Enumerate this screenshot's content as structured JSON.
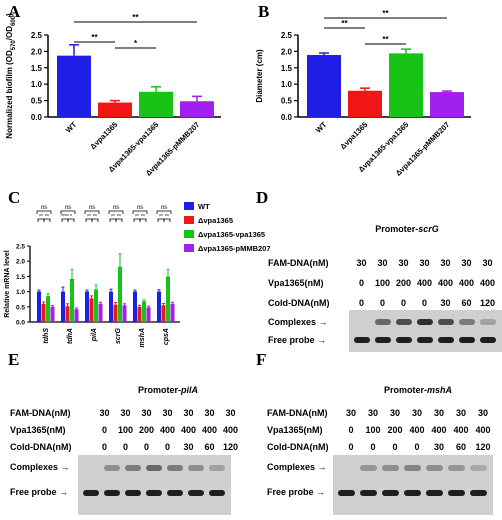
{
  "panels": {
    "A": {
      "letter": "A",
      "chart_data": {
        "type": "bar",
        "ylabel": "Normalized biofilm (OD570/OD600)",
        "ylabel_parts": [
          "Normalized biofilm (OD",
          "570",
          "/OD",
          "600",
          ")"
        ],
        "ylim": [
          0,
          2.5
        ],
        "yticks": [
          "0.0",
          "0.5",
          "1.0",
          "1.5",
          "2.0",
          "2.5"
        ],
        "categories": [
          "WT",
          "Δvpa1365",
          "Δvpa1365-vpa1365",
          "Δvpa1365-pMMB207"
        ],
        "values": [
          1.87,
          0.44,
          0.77,
          0.48
        ],
        "errors": [
          0.33,
          0.06,
          0.15,
          0.15
        ],
        "colors": [
          "#1f1fe6",
          "#f01616",
          "#16c316",
          "#a020f0"
        ],
        "significance": [
          "**",
          "*",
          "**"
        ]
      }
    },
    "B": {
      "letter": "B",
      "chart_data": {
        "type": "bar",
        "ylabel": "Diameter (cm)",
        "ylim": [
          0,
          2.5
        ],
        "yticks": [
          "0.0",
          "0.5",
          "1.0",
          "1.5",
          "2.0",
          "2.5"
        ],
        "categories": [
          "WT",
          "Δvpa1365",
          "Δvpa1365-vpa1365",
          "Δvpa1365-pMMB207"
        ],
        "values": [
          1.89,
          0.8,
          1.94,
          0.76
        ],
        "errors": [
          0.06,
          0.08,
          0.13,
          0.03
        ],
        "colors": [
          "#1f1fe6",
          "#f01616",
          "#16c316",
          "#a020f0"
        ],
        "significance": [
          "**",
          "**",
          "**"
        ]
      }
    },
    "C": {
      "letter": "C",
      "chart_data": {
        "type": "bar",
        "ylabel": "Relative mRNA level",
        "ylim": [
          0,
          2.5
        ],
        "yticks": [
          "0.0",
          "0.5",
          "1.0",
          "1.5",
          "2.0",
          "2.5"
        ],
        "categories": [
          "tdhS",
          "tdhA",
          "pilA",
          "scrG",
          "mshA",
          "cpsA"
        ],
        "series": [
          {
            "name": "WT",
            "color": "#1f1fe6",
            "values": [
              1.0,
              1.0,
              1.0,
              1.0,
              1.0,
              1.0
            ],
            "errors": [
              0.05,
              0.15,
              0.05,
              0.08,
              0.05,
              0.06
            ]
          },
          {
            "name": "Δvpa1365",
            "color": "#f01616",
            "values": [
              0.6,
              0.52,
              0.78,
              0.57,
              0.5,
              0.55
            ],
            "errors": [
              0.06,
              0.08,
              0.08,
              0.07,
              0.05,
              0.06
            ]
          },
          {
            "name": "Δvpa1365-vpa1365",
            "color": "#16c316",
            "values": [
              0.85,
              1.42,
              1.07,
              1.82,
              0.68,
              1.5
            ],
            "errors": [
              0.08,
              0.3,
              0.15,
              0.42,
              0.05,
              0.22
            ]
          },
          {
            "name": "Δvpa1365-pMMB207",
            "color": "#a020f0",
            "values": [
              0.5,
              0.42,
              0.6,
              0.55,
              0.48,
              0.6
            ],
            "errors": [
              0.04,
              0.04,
              0.05,
              0.05,
              0.04,
              0.05
            ]
          }
        ],
        "annotation_top": "ns",
        "annotation_bottom": [
          "**",
          "**",
          "****",
          "*",
          "**",
          "**",
          "**",
          "**",
          "**",
          "**",
          "**",
          "**"
        ]
      }
    },
    "D": {
      "letter": "D",
      "title_prefix": "Promoter-",
      "title_gene": "scrG",
      "rows": [
        {
          "label": "FAM-DNA(nM)",
          "values": [
            "30",
            "30",
            "30",
            "30",
            "30",
            "30",
            "30"
          ]
        },
        {
          "label": "Vpa1365(nM)",
          "values": [
            "0",
            "100",
            "200",
            "400",
            "400",
            "400",
            "400"
          ]
        },
        {
          "label": "Cold-DNA(nM)",
          "values": [
            "0",
            "0",
            "0",
            "0",
            "30",
            "60",
            "120"
          ]
        }
      ],
      "complexes": "Complexes",
      "free_probe": "Free probe",
      "complex_intensity": [
        0,
        0.55,
        0.7,
        0.85,
        0.7,
        0.45,
        0.25
      ]
    },
    "E": {
      "letter": "E",
      "title_prefix": "Promoter-",
      "title_gene": "pilA",
      "rows": [
        {
          "label": "FAM-DNA(nM)",
          "values": [
            "30",
            "30",
            "30",
            "30",
            "30",
            "30",
            "30"
          ]
        },
        {
          "label": "Vpa1365(nM)",
          "values": [
            "0",
            "100",
            "200",
            "400",
            "400",
            "400",
            "400"
          ]
        },
        {
          "label": "Cold-DNA(nM)",
          "values": [
            "0",
            "0",
            "0",
            "0",
            "30",
            "60",
            "120"
          ]
        }
      ],
      "complexes": "Complexes",
      "free_probe": "Free probe",
      "complex_intensity": [
        0,
        0.35,
        0.45,
        0.55,
        0.45,
        0.35,
        0.25
      ]
    },
    "F": {
      "letter": "F",
      "title_prefix": "Promoter-",
      "title_gene": "mshA",
      "rows": [
        {
          "label": "FAM-DNA(nM)",
          "values": [
            "30",
            "30",
            "30",
            "30",
            "30",
            "30",
            "30"
          ]
        },
        {
          "label": "Vpa1365(nM)",
          "values": [
            "0",
            "100",
            "200",
            "400",
            "400",
            "400",
            "400"
          ]
        },
        {
          "label": "Cold-DNA(nM)",
          "values": [
            "0",
            "0",
            "0",
            "0",
            "30",
            "60",
            "120"
          ]
        }
      ],
      "complexes": "Complexes",
      "free_probe": "Free probe",
      "complex_intensity": [
        0,
        0.3,
        0.35,
        0.4,
        0.35,
        0.3,
        0.2
      ]
    }
  }
}
